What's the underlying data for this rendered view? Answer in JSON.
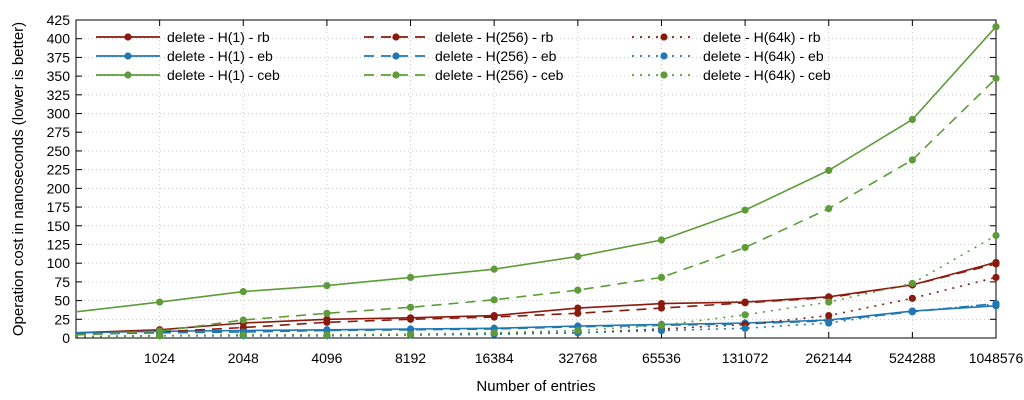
{
  "chart_data": {
    "type": "line",
    "title": "",
    "xlabel": "Number of entries",
    "ylabel": "Operation cost in nanoseconds (lower is better)",
    "x_scale": "log2",
    "x": [
      512,
      1024,
      2048,
      4096,
      8192,
      16384,
      32768,
      65536,
      131072,
      262144,
      524288,
      1048576
    ],
    "x_tick_labels": [
      "1024",
      "2048",
      "4096",
      "8192",
      "16384",
      "32768",
      "65536",
      "131072",
      "262144",
      "524288",
      "1048576"
    ],
    "y_ticks": [
      0,
      25,
      50,
      75,
      100,
      125,
      150,
      175,
      200,
      225,
      250,
      275,
      300,
      325,
      350,
      375,
      400,
      425
    ],
    "xlim": [
      512,
      1048576
    ],
    "ylim": [
      0,
      425
    ],
    "grid": true,
    "legend_position": "top-left",
    "series": [
      {
        "name": "delete - H(1) - rb",
        "color": "#8b1a0e",
        "dash": "solid",
        "values": [
          7,
          11,
          20,
          25,
          27,
          30,
          40,
          46,
          48,
          55,
          71,
          101
        ]
      },
      {
        "name": "delete - H(1) - eb",
        "color": "#1f77b4",
        "dash": "solid",
        "values": [
          7,
          9,
          10,
          11,
          12,
          13,
          16,
          18,
          20,
          24,
          36,
          43
        ]
      },
      {
        "name": "delete - H(1) - ceb",
        "color": "#5d9c38",
        "dash": "solid",
        "values": [
          35,
          48,
          62,
          70,
          81,
          92,
          109,
          131,
          171,
          224,
          292,
          416
        ]
      },
      {
        "name": "delete - H(256) - rb",
        "color": "#8b1a0e",
        "dash": "dash",
        "values": [
          5,
          8,
          14,
          21,
          25,
          28,
          33,
          40,
          47,
          54,
          71,
          99
        ]
      },
      {
        "name": "delete - H(256) - eb",
        "color": "#1f77b4",
        "dash": "dash",
        "values": [
          5,
          7,
          8,
          10,
          11,
          12,
          15,
          17,
          19,
          23,
          35,
          46
        ]
      },
      {
        "name": "delete - H(256) - ceb",
        "color": "#5d9c38",
        "dash": "dash",
        "values": [
          4,
          9,
          24,
          33,
          41,
          51,
          64,
          81,
          121,
          173,
          238,
          347
        ]
      },
      {
        "name": "delete - H(64k) - rb",
        "color": "#8b1a0e",
        "dash": "dot",
        "values": [
          2,
          3,
          4,
          4,
          5,
          6,
          7,
          12,
          18,
          30,
          53,
          81
        ]
      },
      {
        "name": "delete - H(64k) - eb",
        "color": "#1f77b4",
        "dash": "dot",
        "values": [
          2,
          3,
          3,
          3,
          4,
          5,
          7,
          10,
          13,
          20,
          36,
          45
        ]
      },
      {
        "name": "delete - H(64k) - ceb",
        "color": "#5d9c38",
        "dash": "dot",
        "values": [
          2,
          3,
          4,
          4,
          5,
          7,
          10,
          17,
          31,
          48,
          73,
          137
        ]
      }
    ]
  }
}
